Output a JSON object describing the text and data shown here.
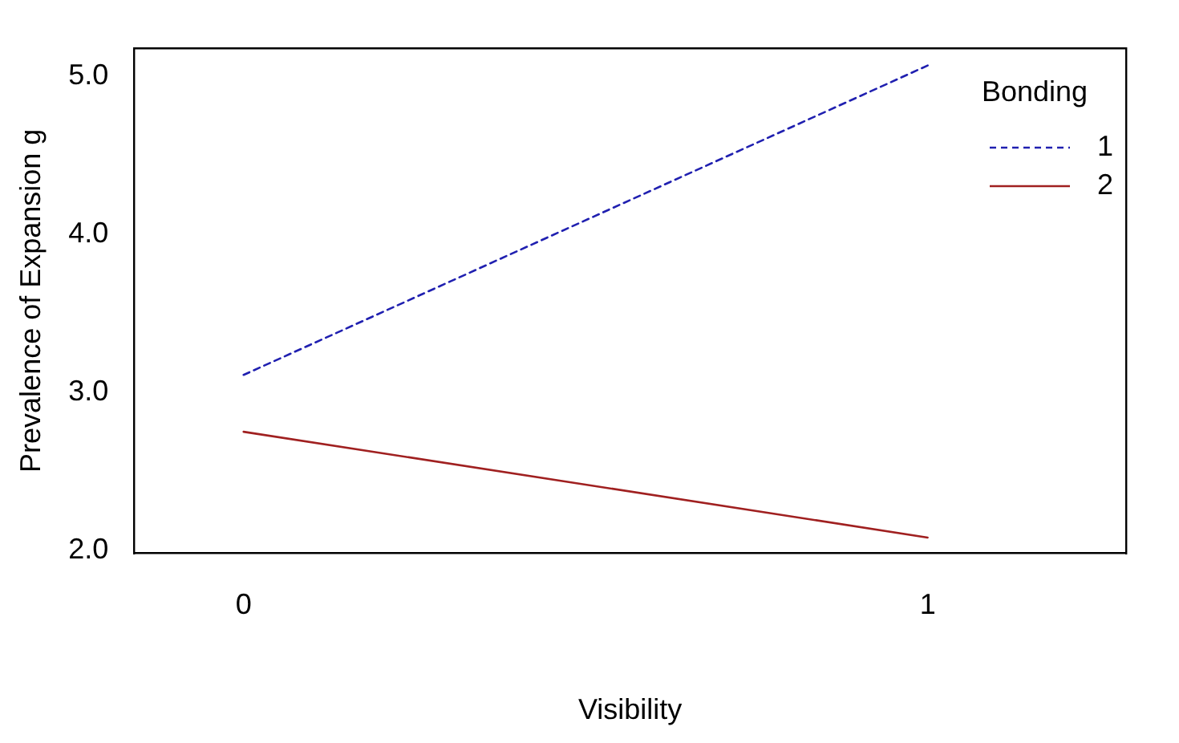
{
  "chart_data": {
    "type": "line",
    "xlabel": "Visibility",
    "ylabel": "Prevalence of Expansion g",
    "legend_title": "Bonding",
    "x": [
      0,
      1
    ],
    "series": [
      {
        "name": "1",
        "color": "#2020b0",
        "line_style": "dashed",
        "values": [
          3.11,
          5.07
        ]
      },
      {
        "name": "2",
        "color": "#a02020",
        "line_style": "solid",
        "values": [
          2.75,
          2.08
        ]
      }
    ],
    "xlim": [
      -0.16,
      1.29
    ],
    "xticks": [
      0,
      1
    ],
    "ylim": [
      1.98,
      5.18
    ],
    "yticks": [
      {
        "value": 2,
        "label": "2.0"
      },
      {
        "value": 3,
        "label": "3.0"
      },
      {
        "value": 4,
        "label": "4.0"
      },
      {
        "value": 5,
        "label": "5.0"
      }
    ],
    "grid": false,
    "legend": "top right",
    "marker": "none"
  }
}
